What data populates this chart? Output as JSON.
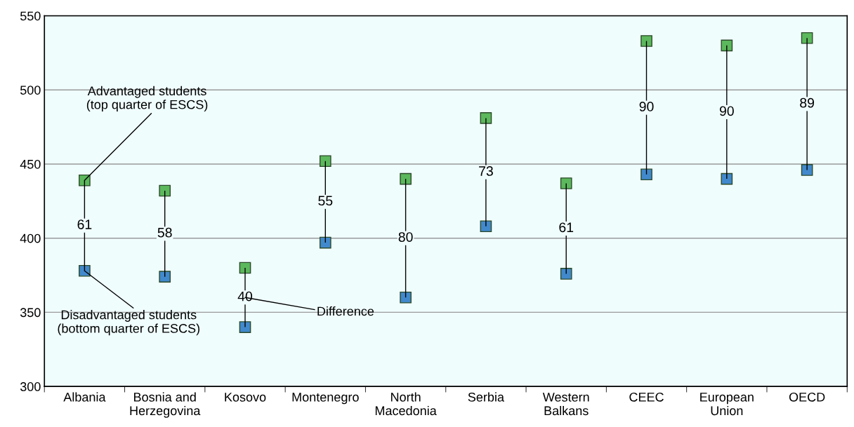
{
  "chart_data": {
    "type": "bar",
    "categories": [
      "Albania",
      "Bosnia and\nHerzegovina",
      "Kosovo",
      "Montenegro",
      "North\nMacedonia",
      "Serbia",
      "Western\nBalkans",
      "CEEC",
      "European\nUnion",
      "OECD"
    ],
    "series": [
      {
        "color": "#000000",
        "base": [
          378,
          374,
          340,
          397,
          360,
          408,
          376,
          443,
          440,
          446
        ],
        "values": [
          61,
          58,
          40,
          55,
          80,
          73,
          61,
          90,
          90,
          89
        ],
        "value_labels": [
          "61",
          "58",
          "40",
          "55",
          "80",
          "73",
          "61",
          "90",
          "90",
          "89"
        ]
      },
      {
        "type": "scatter",
        "color": "#5cb85c",
        "values": [
          439,
          432,
          380,
          452,
          440,
          481,
          437,
          533,
          530,
          535
        ]
      },
      {
        "type": "scatter",
        "color": "#4189cc",
        "values": [
          378,
          374,
          340,
          397,
          360,
          408,
          376,
          443,
          440,
          446
        ]
      }
    ],
    "marker": "square",
    "ylim": [
      300,
      550
    ],
    "yticks": [
      300,
      350,
      400,
      450,
      500,
      550
    ],
    "grid": "y",
    "annotations": [
      {
        "text": "Advantaged students\n(top quarter of ESCS)",
        "x": "Albania",
        "y": 439
      },
      {
        "text": "Disadvantaged students\n(bottom quarter of ESCS)",
        "x": "Albania",
        "y": 378
      },
      {
        "text": "Difference",
        "x": "Kosovo",
        "y": 360
      }
    ]
  }
}
